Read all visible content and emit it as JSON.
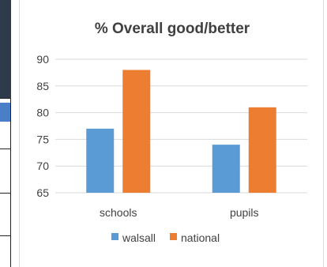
{
  "chart_data": {
    "type": "bar",
    "title": "% Overall good/better",
    "categories": [
      "schools",
      "pupils"
    ],
    "series": [
      {
        "name": "walsall",
        "values": [
          77,
          74
        ],
        "color": "#5b9bd5"
      },
      {
        "name": "national",
        "values": [
          88,
          81
        ],
        "color": "#ed7d31"
      }
    ],
    "ylim": [
      65,
      90
    ],
    "yticks": [
      65,
      70,
      75,
      80,
      85,
      90
    ],
    "grid": true,
    "legend": "bottom"
  }
}
